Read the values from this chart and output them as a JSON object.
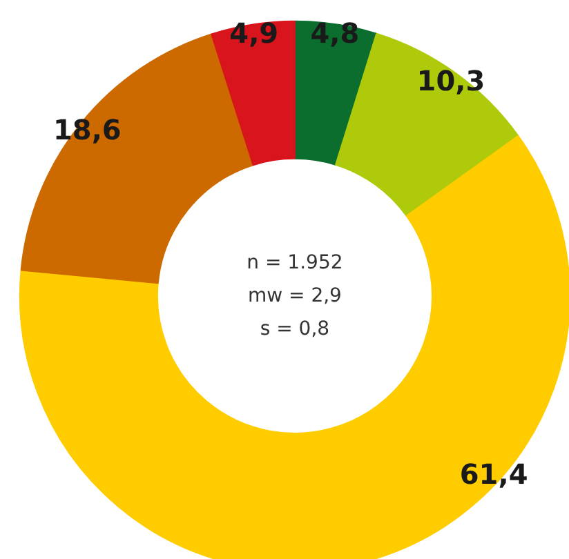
{
  "chart_data": {
    "type": "donut",
    "categories": [
      null,
      null,
      null,
      null,
      null
    ],
    "values": [
      4.8,
      10.3,
      61.4,
      18.6,
      4.9
    ],
    "colors": [
      "#0b6e2f",
      "#afca0b",
      "#ffcc00",
      "#cc6a00",
      "#d8141c"
    ],
    "value_labels": [
      "4,8",
      "10,3",
      "61,4",
      "18,6",
      "4,9"
    ],
    "annotations": [
      "n = 1.952",
      "mw = 2,9",
      "s = 0,8"
    ]
  }
}
